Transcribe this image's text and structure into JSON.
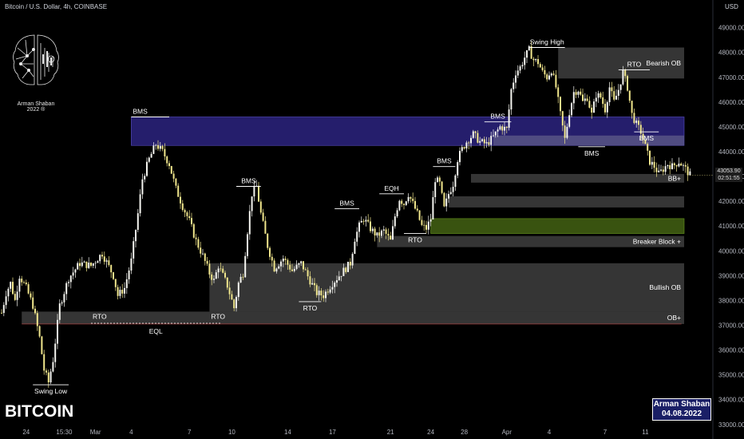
{
  "header": {
    "instrument": "Bitcoin / U.S. Dollar, 4h, COINBASE",
    "currency": "USD"
  },
  "ticker": "BITCOIN",
  "logo": {
    "name": "Arman Shaban",
    "year": "2022 ®",
    "icon": "brain-icon"
  },
  "signature": {
    "name": "Arman Shaban",
    "date": "04.08.2022"
  },
  "price_label": {
    "value": "43053.90",
    "countdown": "02:51:55"
  },
  "colors": {
    "background": "#000000",
    "candle": "#f0e68c",
    "candle_bull": "#ffffff",
    "bearish_zone": "#2a2280",
    "breaker_zone": "#3c5a10",
    "gray_zone": "#3a3a3a"
  },
  "chart_data": {
    "type": "candlestick",
    "instrument": "Bitcoin / U.S. Dollar",
    "timeframe": "4h",
    "exchange": "COINBASE",
    "x_tick_labels": [
      "24",
      "15:30",
      "Mar",
      "4",
      "7",
      "10",
      "14",
      "17",
      "21",
      "24",
      "28",
      "Apr",
      "4",
      "7",
      "11"
    ],
    "y_tick_labels": [
      "49000.00",
      "48000.00",
      "47000.00",
      "46000.00",
      "45000.00",
      "44000.00",
      "43000.00",
      "42000.00",
      "41000.00",
      "40000.00",
      "39000.00",
      "38000.00",
      "37000.00",
      "36000.00",
      "35000.00",
      "34000.00",
      "33000.00"
    ],
    "ylim": [
      32800,
      49600
    ],
    "last_price": 43053.9,
    "path": [
      [
        0,
        37500
      ],
      [
        2,
        38300
      ],
      [
        4,
        38700
      ],
      [
        6,
        38000
      ],
      [
        8,
        39000
      ],
      [
        11,
        38500
      ],
      [
        14,
        37800
      ],
      [
        17,
        36500
      ],
      [
        19,
        35200
      ],
      [
        21,
        34700
      ],
      [
        23,
        35600
      ],
      [
        26,
        37800
      ],
      [
        30,
        38900
      ],
      [
        35,
        39500
      ],
      [
        40,
        39400
      ],
      [
        45,
        39900
      ],
      [
        50,
        39000
      ],
      [
        52,
        38200
      ],
      [
        55,
        38500
      ],
      [
        58,
        39600
      ],
      [
        61,
        41500
      ],
      [
        63,
        42900
      ],
      [
        66,
        43700
      ],
      [
        69,
        44300
      ],
      [
        72,
        44000
      ],
      [
        75,
        43500
      ],
      [
        78,
        42500
      ],
      [
        81,
        41800
      ],
      [
        84,
        41200
      ],
      [
        87,
        40400
      ],
      [
        90,
        39800
      ],
      [
        93,
        39100
      ],
      [
        95,
        38800
      ],
      [
        97,
        39400
      ],
      [
        99,
        39000
      ],
      [
        101,
        38600
      ],
      [
        103,
        38000
      ],
      [
        104,
        37700
      ],
      [
        106,
        38700
      ],
      [
        108,
        39100
      ],
      [
        110,
        40800
      ],
      [
        112,
        42300
      ],
      [
        114,
        42600
      ],
      [
        116,
        41500
      ],
      [
        119,
        40200
      ],
      [
        122,
        39300
      ],
      [
        126,
        39700
      ],
      [
        130,
        39200
      ],
      [
        134,
        39500
      ],
      [
        138,
        38800
      ],
      [
        141,
        38300
      ],
      [
        144,
        38200
      ],
      [
        148,
        38700
      ],
      [
        152,
        39100
      ],
      [
        156,
        39500
      ],
      [
        158,
        40500
      ],
      [
        160,
        41000
      ],
      [
        162,
        41300
      ],
      [
        165,
        40900
      ],
      [
        168,
        40600
      ],
      [
        171,
        40800
      ],
      [
        174,
        40400
      ],
      [
        176,
        41400
      ],
      [
        178,
        42100
      ],
      [
        180,
        41900
      ],
      [
        182,
        42300
      ],
      [
        184,
        41900
      ],
      [
        186,
        41500
      ],
      [
        188,
        41000
      ],
      [
        190,
        40900
      ],
      [
        192,
        41300
      ],
      [
        194,
        42900
      ],
      [
        196,
        42700
      ],
      [
        198,
        41700
      ],
      [
        200,
        42300
      ],
      [
        202,
        42700
      ],
      [
        204,
        43700
      ],
      [
        206,
        44100
      ],
      [
        208,
        44400
      ],
      [
        211,
        44700
      ],
      [
        214,
        44400
      ],
      [
        217,
        44300
      ],
      [
        220,
        44600
      ],
      [
        223,
        45000
      ],
      [
        226,
        44900
      ],
      [
        228,
        46500
      ],
      [
        230,
        47200
      ],
      [
        232,
        47400
      ],
      [
        234,
        47800
      ],
      [
        236,
        48100
      ],
      [
        238,
        47700
      ],
      [
        240,
        47600
      ],
      [
        242,
        47200
      ],
      [
        244,
        47000
      ],
      [
        246,
        47300
      ],
      [
        248,
        46600
      ],
      [
        250,
        45500
      ],
      [
        252,
        44500
      ],
      [
        254,
        45600
      ],
      [
        256,
        46400
      ],
      [
        258,
        46500
      ],
      [
        260,
        46000
      ],
      [
        262,
        46200
      ],
      [
        264,
        45500
      ],
      [
        266,
        46300
      ],
      [
        268,
        46200
      ],
      [
        270,
        45700
      ],
      [
        272,
        46600
      ],
      [
        274,
        46000
      ],
      [
        276,
        46500
      ],
      [
        278,
        47200
      ],
      [
        280,
        46600
      ],
      [
        282,
        45500
      ],
      [
        284,
        45100
      ],
      [
        286,
        44800
      ],
      [
        288,
        44200
      ],
      [
        290,
        43600
      ],
      [
        292,
        43400
      ],
      [
        294,
        43100
      ],
      [
        296,
        43300
      ],
      [
        298,
        43500
      ],
      [
        300,
        43400
      ],
      [
        303,
        43600
      ],
      [
        306,
        43300
      ],
      [
        308,
        43050
      ]
    ],
    "zones": [
      {
        "name": "Bearish OB",
        "color": "gray",
        "t0": 249,
        "t1": 317,
        "lo": 46950,
        "hi": 48200
      },
      {
        "name": "",
        "color": "purple",
        "t0": 58,
        "t1": 317,
        "lo": 44250,
        "hi": 45400
      },
      {
        "name": "",
        "color": "lilac",
        "t0": 220,
        "t1": 317,
        "lo": 44250,
        "hi": 44650
      },
      {
        "name": "BB+",
        "color": "gray",
        "t0": 210,
        "t1": 317,
        "lo": 42750,
        "hi": 43100
      },
      {
        "name": "",
        "color": "gray",
        "t0": 200,
        "t1": 317,
        "lo": 41750,
        "hi": 42200
      },
      {
        "name": "",
        "color": "green",
        "t0": 192,
        "t1": 317,
        "lo": 40700,
        "hi": 41300
      },
      {
        "name": "Breaker Block +",
        "color": "gray",
        "t0": 168,
        "t1": 317,
        "lo": 40150,
        "hi": 40600
      },
      {
        "name": "Bullish OB",
        "color": "gray",
        "t0": 93,
        "t1": 317,
        "lo": 37550,
        "hi": 39500
      },
      {
        "name": "OB+",
        "color": "gray",
        "t0": 9,
        "t1": 317,
        "lo": 37050,
        "hi": 37550
      }
    ],
    "annotations": [
      {
        "text": "BMS",
        "t0": 58,
        "t1": 75,
        "y": 45400,
        "place": "above-left"
      },
      {
        "text": "BMS",
        "t0": 105,
        "t1": 116,
        "y": 42600,
        "place": "above"
      },
      {
        "text": "BMS",
        "t0": 149,
        "t1": 160,
        "y": 41700,
        "place": "above"
      },
      {
        "text": "EQH",
        "t0": 169,
        "t1": 180,
        "y": 42300,
        "place": "above"
      },
      {
        "text": "BMS",
        "t0": 193,
        "t1": 203,
        "y": 43400,
        "place": "above"
      },
      {
        "text": "BMS",
        "t0": 216,
        "t1": 228,
        "y": 45200,
        "place": "above"
      },
      {
        "text": "Swing High",
        "t0": 236,
        "t1": 252,
        "y": 48200,
        "place": "above"
      },
      {
        "text": "RTO",
        "t0": 276,
        "t1": 290,
        "y": 47300,
        "place": "above"
      },
      {
        "text": "BMS",
        "t0": 258,
        "t1": 270,
        "y": 44200,
        "place": "below"
      },
      {
        "text": "BMS",
        "t0": 283,
        "t1": 294,
        "y": 44800,
        "place": "below"
      },
      {
        "text": "RTO",
        "t0": 180,
        "t1": 190,
        "y": 40700,
        "place": "below"
      },
      {
        "text": "RTO",
        "t0": 40,
        "t1": 50,
        "y": 37350,
        "place": "left-in"
      },
      {
        "text": "RTO",
        "t0": 93,
        "t1": 103,
        "y": 37350,
        "place": "in"
      },
      {
        "text": "RTO",
        "t0": 133,
        "t1": 143,
        "y": 37950,
        "place": "below"
      },
      {
        "text": "EQL",
        "t0": 40,
        "t1": 98,
        "y": 37050,
        "place": "below"
      },
      {
        "text": "Swing Low",
        "t0": 14,
        "t1": 30,
        "y": 34600,
        "place": "below"
      }
    ]
  }
}
